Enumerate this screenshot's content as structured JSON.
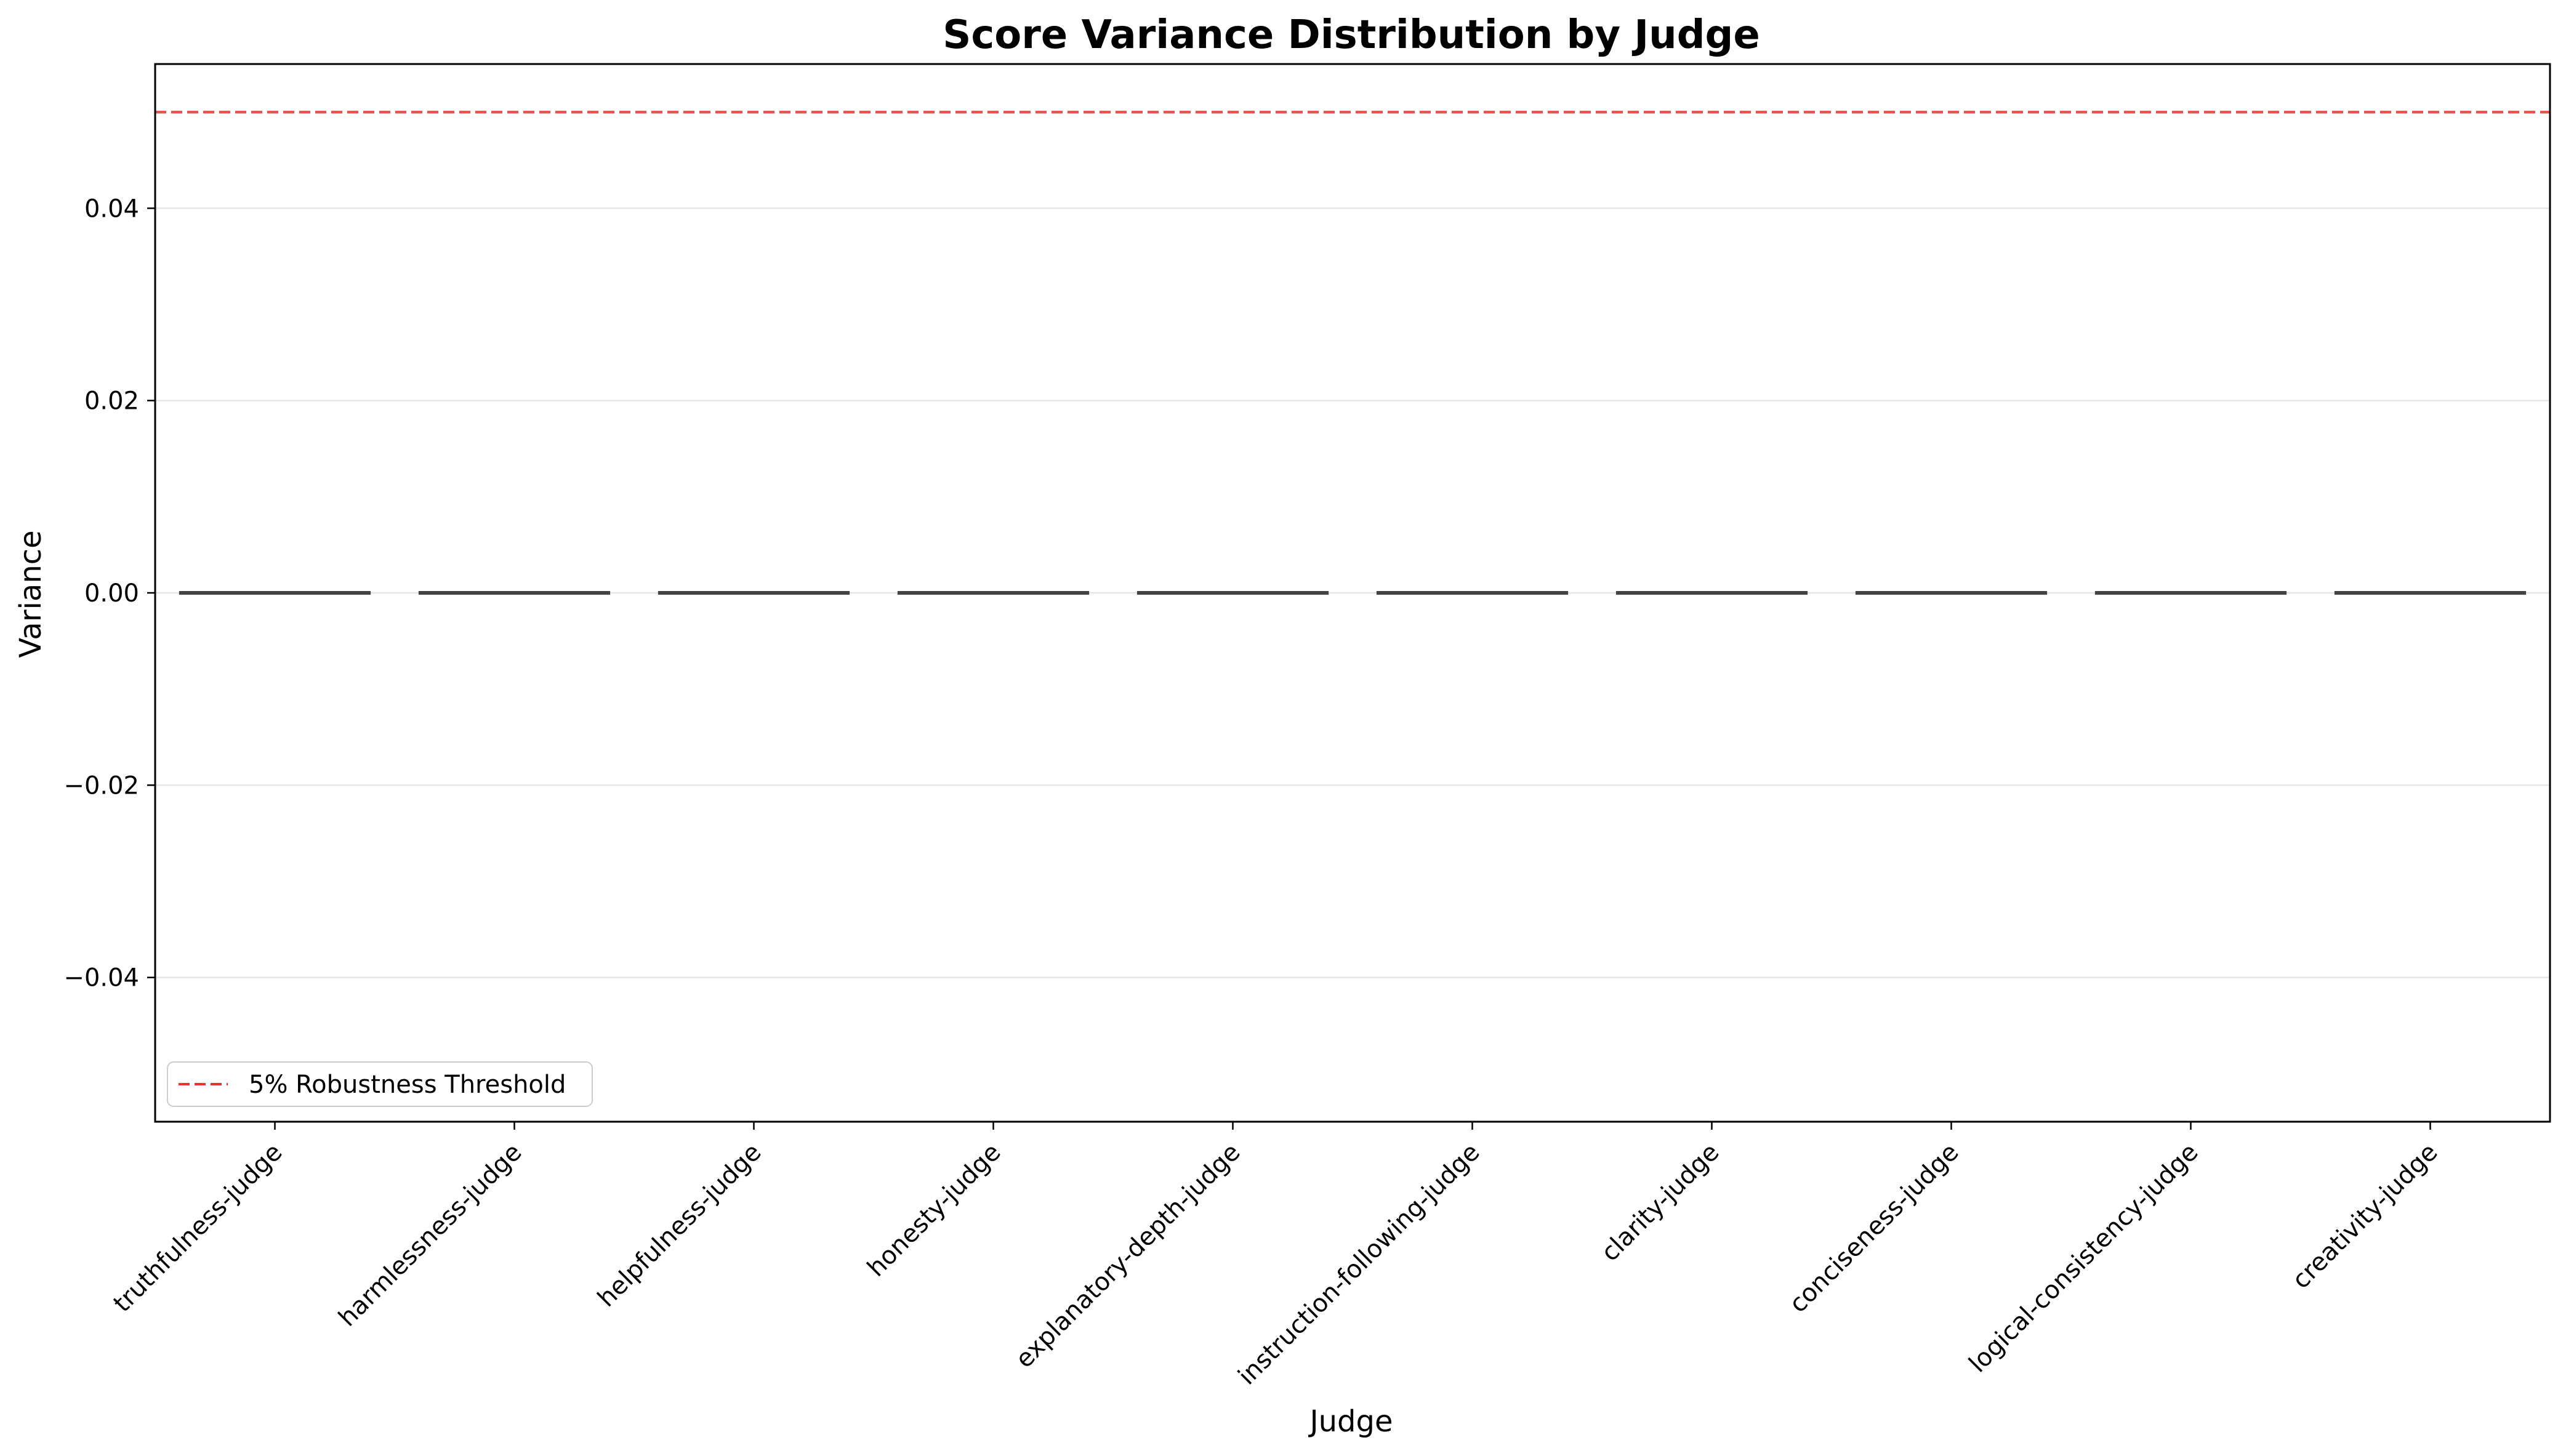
{
  "chart_data": {
    "type": "box",
    "title": "Score Variance Distribution by Judge",
    "xlabel": "Judge",
    "ylabel": "Variance",
    "categories": [
      "truthfulness-judge",
      "harmlessness-judge",
      "helpfulness-judge",
      "honesty-judge",
      "explanatory-depth-judge",
      "instruction-following-judge",
      "clarity-judge",
      "conciseness-judge",
      "logical-consistency-judge",
      "creativity-judge"
    ],
    "values": [
      0,
      0,
      0,
      0,
      0,
      0,
      0,
      0,
      0,
      0
    ],
    "ylim": [
      -0.055,
      0.055
    ],
    "yticks": [
      -0.04,
      -0.02,
      0.0,
      0.02,
      0.04
    ],
    "ytick_labels": [
      "−0.04",
      "−0.02",
      "0.00",
      "0.02",
      "0.04"
    ],
    "grid": "y",
    "box_color": "#444444",
    "threshold": {
      "value": 0.05,
      "label": "5% Robustness Threshold",
      "color": "#e8332f",
      "style": "dashed"
    },
    "legend": {
      "placement": "lower-left",
      "entries": [
        "5% Robustness Threshold"
      ]
    }
  }
}
